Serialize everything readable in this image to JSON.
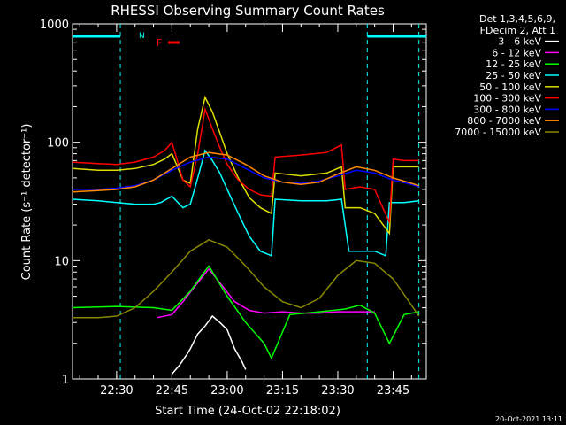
{
  "chart_data": {
    "type": "line",
    "title": "RHESSI Observing Summary Count Rates",
    "ylabel": "Count Rate (s⁻¹ detector⁻¹)",
    "xlabel": "Start Time (24-Oct-02 22:18:02)",
    "y_scale": "log",
    "ylim": [
      1,
      1000
    ],
    "xlim_minutes_after_2230_clock": [
      "22:18:02",
      "23:54:00"
    ],
    "x_ticks": [
      "22:30",
      "22:45",
      "23:00",
      "23:15",
      "23:30",
      "23:45"
    ],
    "y_ticks": [
      "1",
      "10",
      "100",
      "1000"
    ],
    "legend_header": [
      "Det 1,3,4,5,6,9,",
      "FDecim 2, Att 1"
    ],
    "legend_position": "top-right outside",
    "flags": {
      "N": "N",
      "F": "F"
    },
    "footer_date": "20-Oct-2021 13:11",
    "series": [
      {
        "name": "3 - 6 keV",
        "color": "#ffffff",
        "times": [
          "22:45",
          "22:47",
          "22:49",
          "22:50",
          "22:52",
          "22:54",
          "22:56",
          "22:58",
          "23:00",
          "23:02",
          "23:04",
          "23:05"
        ],
        "values": [
          1.1,
          1.3,
          1.6,
          1.8,
          2.4,
          2.8,
          3.4,
          3.0,
          2.6,
          1.8,
          1.4,
          1.2
        ]
      },
      {
        "name": "6 - 12 keV",
        "color": "#ff00ff",
        "times": [
          "22:41",
          "22:45",
          "22:48",
          "22:52",
          "22:55",
          "22:58",
          "23:02",
          "23:06",
          "23:10",
          "23:15",
          "23:20",
          "23:25",
          "23:30",
          "23:35",
          "23:40"
        ],
        "values": [
          3.3,
          3.5,
          4.5,
          6.5,
          8.5,
          6.5,
          4.5,
          3.8,
          3.6,
          3.7,
          3.6,
          3.6,
          3.7,
          3.7,
          3.7
        ]
      },
      {
        "name": "12 - 25 keV",
        "color": "#00ff00",
        "times": [
          "22:18",
          "22:30",
          "22:40",
          "22:45",
          "22:50",
          "22:55",
          "23:00",
          "23:05",
          "23:10",
          "23:12",
          "23:17",
          "23:25",
          "23:32",
          "23:36",
          "23:40",
          "23:44",
          "23:48",
          "23:52"
        ],
        "values": [
          4.0,
          4.1,
          4.0,
          3.8,
          5.5,
          9.0,
          5.0,
          3.0,
          2.0,
          1.5,
          3.5,
          3.7,
          3.9,
          4.2,
          3.6,
          2.0,
          3.5,
          3.7
        ]
      },
      {
        "name": "25 - 50 keV",
        "color": "#00ffff",
        "times": [
          "22:18",
          "22:25",
          "22:30",
          "22:35",
          "22:40",
          "22:42",
          "22:45",
          "22:48",
          "22:50",
          "22:52",
          "22:54",
          "22:56",
          "22:58",
          "23:00",
          "23:03",
          "23:06",
          "23:09",
          "23:12",
          "23:13",
          "23:20",
          "23:27",
          "23:31",
          "23:33",
          "23:36",
          "23:40",
          "23:43",
          "23:44",
          "23:48",
          "23:52"
        ],
        "values": [
          33,
          32,
          31,
          30,
          30,
          31,
          35,
          28,
          30,
          50,
          85,
          70,
          55,
          40,
          25,
          16,
          12,
          11,
          33,
          32,
          32,
          33,
          12,
          12,
          12,
          11,
          31,
          31,
          32
        ]
      },
      {
        "name": "50 - 100 keV",
        "color": "#dddd00",
        "times": [
          "22:18",
          "22:25",
          "22:30",
          "22:35",
          "22:40",
          "22:43",
          "22:45",
          "22:48",
          "22:50",
          "22:52",
          "22:54",
          "22:56",
          "22:58",
          "23:00",
          "23:03",
          "23:06",
          "23:09",
          "23:12",
          "23:13",
          "23:20",
          "23:27",
          "23:31",
          "23:32",
          "23:36",
          "23:40",
          "23:44",
          "23:45",
          "23:48",
          "23:52"
        ],
        "values": [
          60,
          58,
          58,
          60,
          65,
          72,
          80,
          48,
          45,
          130,
          240,
          180,
          120,
          80,
          50,
          34,
          28,
          25,
          55,
          52,
          55,
          62,
          28,
          28,
          25,
          17,
          62,
          62,
          62
        ]
      },
      {
        "name": "100 - 300 keV",
        "color": "#ff0000",
        "times": [
          "22:18",
          "22:25",
          "22:30",
          "22:35",
          "22:40",
          "22:43",
          "22:45",
          "22:48",
          "22:50",
          "22:52",
          "22:54",
          "22:56",
          "22:58",
          "23:00",
          "23:03",
          "23:06",
          "23:09",
          "23:12",
          "23:13",
          "23:20",
          "23:27",
          "23:31",
          "23:32",
          "23:36",
          "23:40",
          "23:44",
          "23:45",
          "23:48",
          "23:52"
        ],
        "values": [
          68,
          66,
          65,
          68,
          75,
          85,
          100,
          48,
          42,
          80,
          190,
          130,
          90,
          65,
          48,
          40,
          36,
          35,
          75,
          78,
          82,
          95,
          40,
          42,
          40,
          21,
          72,
          70,
          70
        ]
      },
      {
        "name": "300 - 800 keV",
        "color": "#0000ff",
        "times": [
          "22:18",
          "22:25",
          "22:30",
          "22:35",
          "22:40",
          "22:45",
          "22:50",
          "22:55",
          "23:00",
          "23:05",
          "23:10",
          "23:15",
          "23:20",
          "23:25",
          "23:30",
          "23:35",
          "23:40",
          "23:45",
          "23:50",
          "23:52"
        ],
        "values": [
          40,
          40,
          41,
          43,
          48,
          58,
          68,
          75,
          72,
          60,
          50,
          46,
          45,
          47,
          52,
          58,
          55,
          48,
          44,
          42
        ]
      },
      {
        "name": "800 - 7000 keV",
        "color": "#ff8800",
        "times": [
          "22:18",
          "22:25",
          "22:30",
          "22:35",
          "22:40",
          "22:45",
          "22:50",
          "22:55",
          "23:00",
          "23:05",
          "23:10",
          "23:15",
          "23:20",
          "23:25",
          "23:30",
          "23:35",
          "23:40",
          "23:45",
          "23:50",
          "23:52"
        ],
        "values": [
          38,
          39,
          40,
          42,
          48,
          60,
          75,
          82,
          78,
          65,
          52,
          46,
          44,
          46,
          54,
          62,
          58,
          50,
          45,
          43
        ]
      },
      {
        "name": "7000 - 15000 keV",
        "color": "#888800",
        "times": [
          "22:18",
          "22:25",
          "22:30",
          "22:35",
          "22:40",
          "22:45",
          "22:50",
          "22:55",
          "23:00",
          "23:05",
          "23:10",
          "23:15",
          "23:20",
          "23:25",
          "23:30",
          "23:35",
          "23:40",
          "23:45",
          "23:50",
          "23:52"
        ],
        "values": [
          3.3,
          3.3,
          3.4,
          4.0,
          5.5,
          8.0,
          12,
          15,
          13,
          9,
          6,
          4.5,
          4.0,
          4.8,
          7.5,
          10,
          9.5,
          7,
          4.2,
          3.4
        ]
      }
    ]
  }
}
